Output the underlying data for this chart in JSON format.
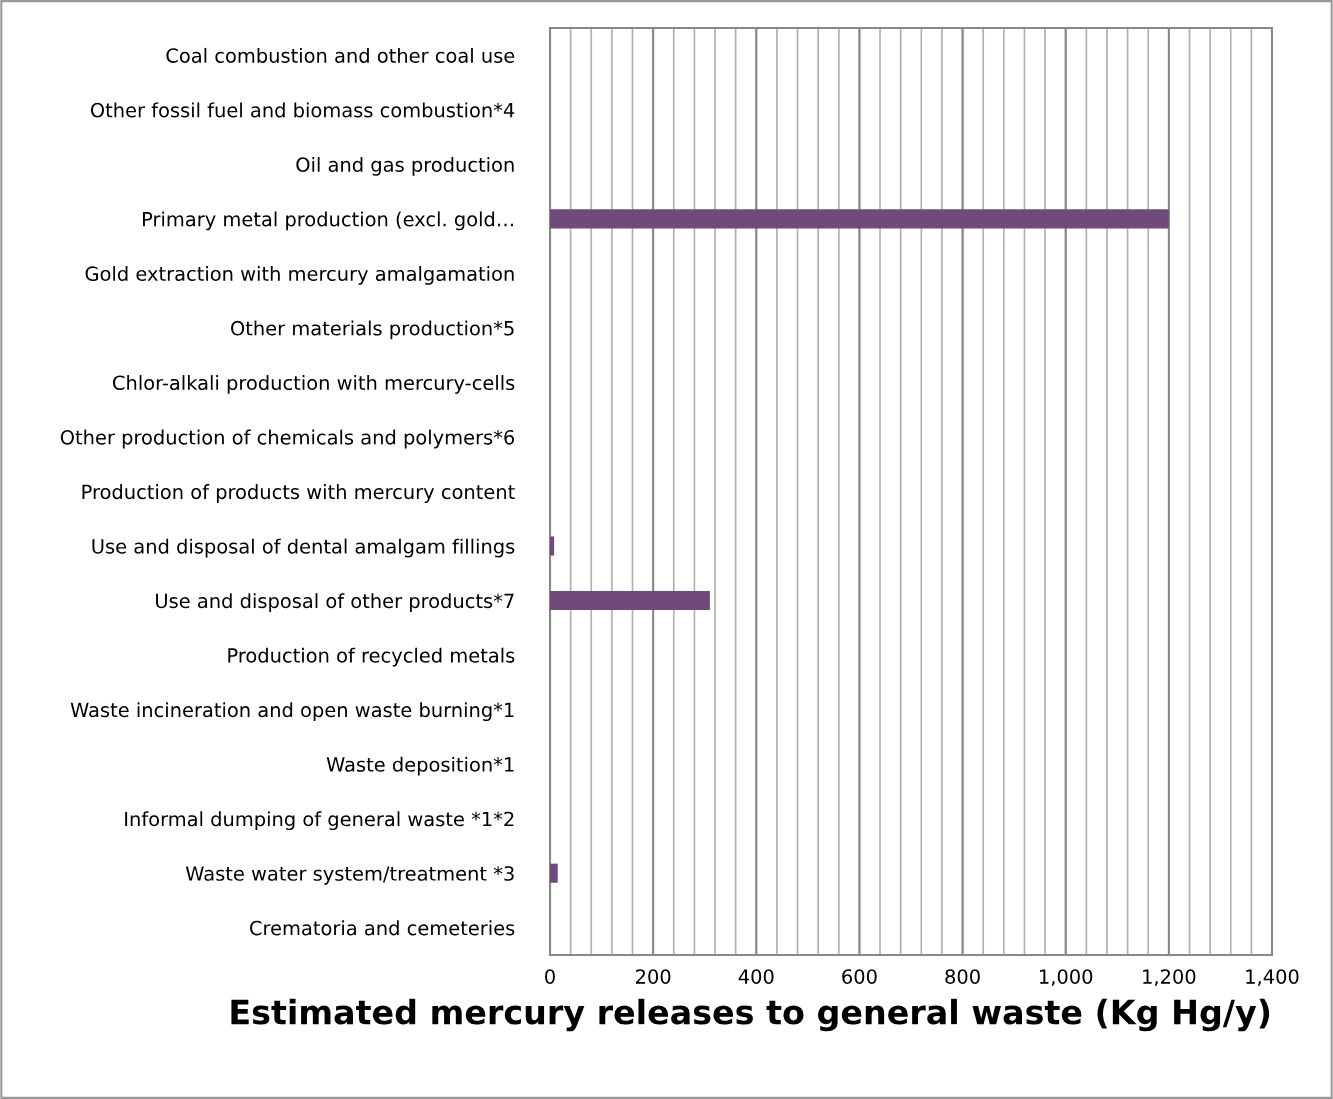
{
  "chart_data": {
    "type": "bar",
    "orientation": "horizontal",
    "xlabel": "Estimated mercury releases to general waste (Kg Hg/y)",
    "categories": [
      "Coal combustion and other coal use",
      "Other fossil fuel and biomass combustion*4",
      "Oil and gas production",
      "Primary metal production (excl. gold…",
      "Gold extraction with mercury amalgamation",
      "Other materials production*5",
      "Chlor-alkali production with mercury-cells",
      "Other production of chemicals and polymers*6",
      "Production of products with mercury content",
      "Use and disposal of dental amalgam fillings",
      "Use and disposal of other products*7",
      "Production of recycled metals",
      "Waste incineration and open waste burning*1",
      "Waste deposition*1",
      "Informal dumping of general waste *1*2",
      "Waste water system/treatment *3",
      "Crematoria and cemeteries"
    ],
    "values": [
      0,
      0,
      0,
      1200,
      0,
      0,
      0,
      0,
      0,
      8,
      310,
      0,
      0,
      0,
      0,
      15,
      0
    ],
    "color": "#6f4a7b",
    "xlim": [
      0,
      1400
    ],
    "xticks": [
      0,
      {
        "value": 40,
        "label": null
      },
      {
        "value": 80,
        "label": null
      },
      {
        "value": 120,
        "label": null
      },
      {
        "value": 160,
        "label": null
      },
      {
        "value": 200,
        "label": "200"
      },
      {
        "value": 240,
        "label": null
      },
      {
        "value": 280,
        "label": null
      },
      {
        "value": 320,
        "label": null
      },
      {
        "value": 360,
        "label": null
      },
      {
        "value": 400,
        "label": "400"
      },
      {
        "value": 440,
        "label": null
      },
      {
        "value": 480,
        "label": null
      },
      {
        "value": 520,
        "label": null
      },
      {
        "value": 560,
        "label": null
      },
      {
        "value": 600,
        "label": "600"
      },
      {
        "value": 640,
        "label": null
      },
      {
        "value": 680,
        "label": null
      },
      {
        "value": 720,
        "label": null
      },
      {
        "value": 760,
        "label": null
      },
      {
        "value": 800,
        "label": "800"
      },
      {
        "value": 840,
        "label": null
      },
      {
        "value": 880,
        "label": null
      },
      {
        "value": 920,
        "label": null
      },
      {
        "value": 960,
        "label": null
      },
      {
        "value": 1000,
        "label": "1,000"
      },
      {
        "value": 1040,
        "label": null
      },
      {
        "value": 1080,
        "label": null
      },
      {
        "value": 1120,
        "label": null
      },
      {
        "value": 1160,
        "label": null
      },
      {
        "value": 1200,
        "label": "1,200"
      },
      {
        "value": 1240,
        "label": null
      },
      {
        "value": 1280,
        "label": null
      },
      {
        "value": 1320,
        "label": null
      },
      {
        "value": 1360,
        "label": null
      },
      {
        "value": 1400,
        "label": "1,400"
      }
    ],
    "grid": "x"
  }
}
